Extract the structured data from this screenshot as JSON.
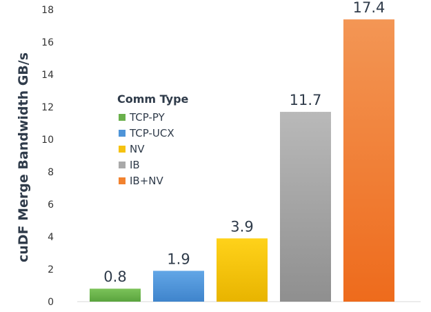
{
  "chart_data": {
    "type": "bar",
    "categories": [
      "TCP-PY",
      "TCP-UCX",
      "NV",
      "IB",
      "IB+NV"
    ],
    "values": [
      0.8,
      1.9,
      3.9,
      11.7,
      17.4
    ],
    "data_labels": [
      "0.8",
      "1.9",
      "3.9",
      "11.7",
      "17.4"
    ],
    "colors": [
      "#6ab04c",
      "#4f94d8",
      "#f5c210",
      "#a9a9a9",
      "#f2822f"
    ],
    "title": "",
    "xlabel": "",
    "ylabel": "cuDF Merge Bandwidth GB/s",
    "ylim": [
      0,
      18
    ],
    "yticks": [
      "0",
      "2",
      "4",
      "6",
      "8",
      "10",
      "12",
      "14",
      "16",
      "18"
    ],
    "grid": false,
    "legend": {
      "title": "Comm Type",
      "position": "upper-left",
      "entries": [
        "TCP-PY",
        "TCP-UCX",
        "NV",
        "IB",
        "IB+NV"
      ]
    }
  }
}
